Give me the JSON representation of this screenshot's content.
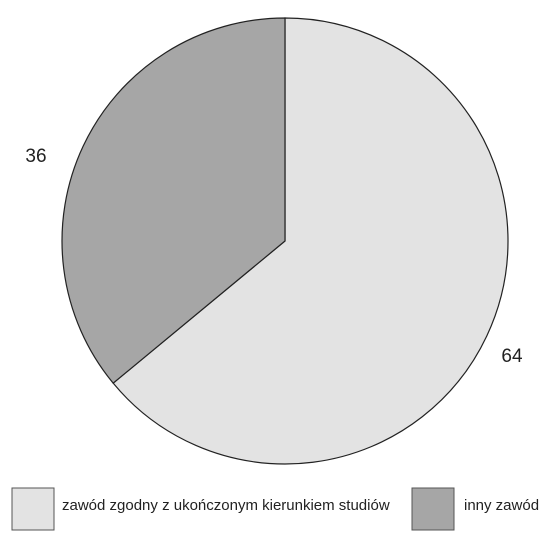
{
  "chart_data": {
    "type": "pie",
    "categories": [
      "zawód zgodny z ukończonym kierunkiem studiów",
      "inny zawód"
    ],
    "values": [
      64,
      36
    ],
    "data_labels": [
      "64",
      "36"
    ],
    "colors": [
      "#e3e3e3",
      "#a6a6a6"
    ],
    "start": "12 o'clock",
    "direction": "clockwise",
    "legend": {
      "position": "bottom",
      "entries": [
        "zawód zgodny z ukończonym kierunkiem studiów",
        "inny zawód"
      ]
    }
  }
}
